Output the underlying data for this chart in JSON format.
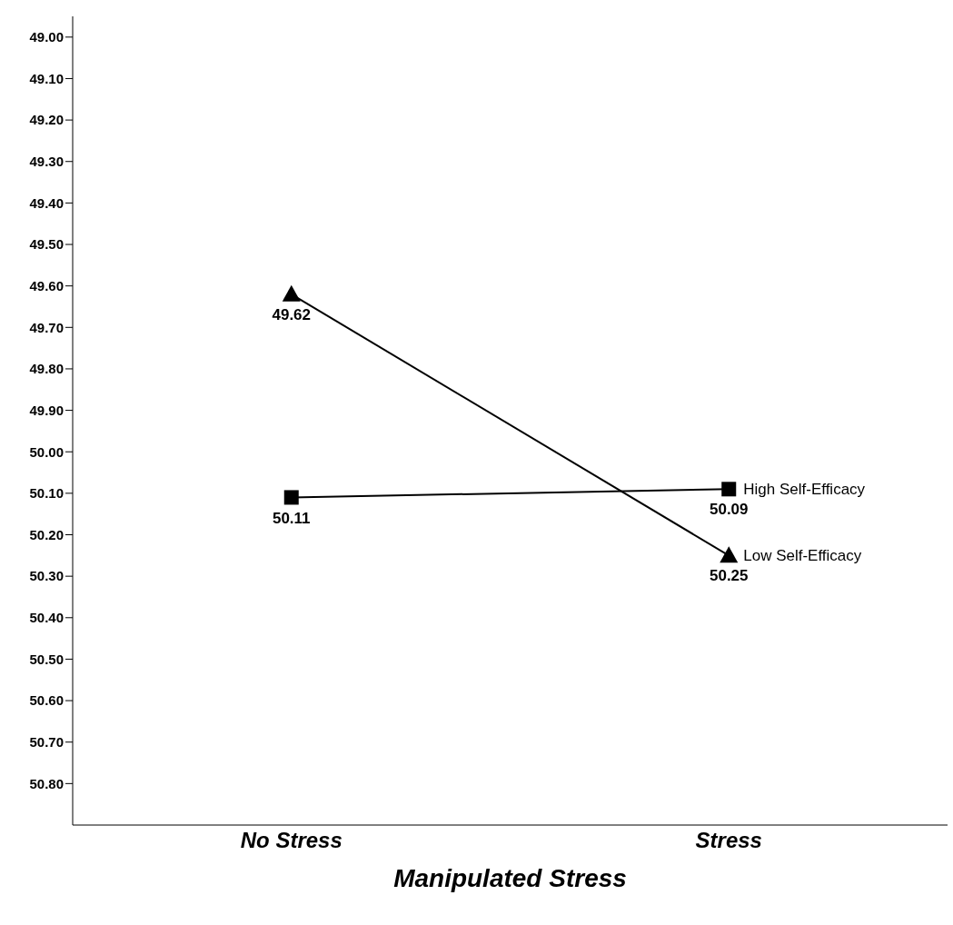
{
  "chart_data": {
    "type": "line",
    "xlabel": "Manipulated Stress",
    "categories": [
      "No Stress",
      "Stress"
    ],
    "series": [
      {
        "name": "High Self-Efficacy",
        "color": "#000000",
        "marker": "square",
        "values": [
          50.11,
          50.09
        ]
      },
      {
        "name": "Low Self-Efficacy",
        "color": "#000000",
        "marker": "triangle",
        "values": [
          49.62,
          50.25
        ]
      }
    ],
    "ylim": [
      50.9,
      48.95
    ],
    "yticks": [
      {
        "value": 49.0,
        "label": "49.00"
      },
      {
        "value": 49.1,
        "label": "49.10"
      },
      {
        "value": 49.2,
        "label": "49.20"
      },
      {
        "value": 49.3,
        "label": "49.30"
      },
      {
        "value": 49.4,
        "label": "49.40"
      },
      {
        "value": 49.5,
        "label": "49.50"
      },
      {
        "value": 49.6,
        "label": "49.60"
      },
      {
        "value": 49.7,
        "label": "49.70"
      },
      {
        "value": 49.8,
        "label": "49.80"
      },
      {
        "value": 49.9,
        "label": "49.90"
      },
      {
        "value": 50.0,
        "label": "50.00"
      },
      {
        "value": 50.1,
        "label": "50.10"
      },
      {
        "value": 50.2,
        "label": "50.20"
      },
      {
        "value": 50.3,
        "label": "50.30"
      },
      {
        "value": 50.4,
        "label": "50.40"
      },
      {
        "value": 50.5,
        "label": "50.50"
      },
      {
        "value": 50.6,
        "label": "50.60"
      },
      {
        "value": 50.7,
        "label": "50.70"
      },
      {
        "value": 50.8,
        "label": "50.80"
      }
    ],
    "data_labels": true,
    "grid": false,
    "legend": false,
    "line_style": "solid"
  }
}
